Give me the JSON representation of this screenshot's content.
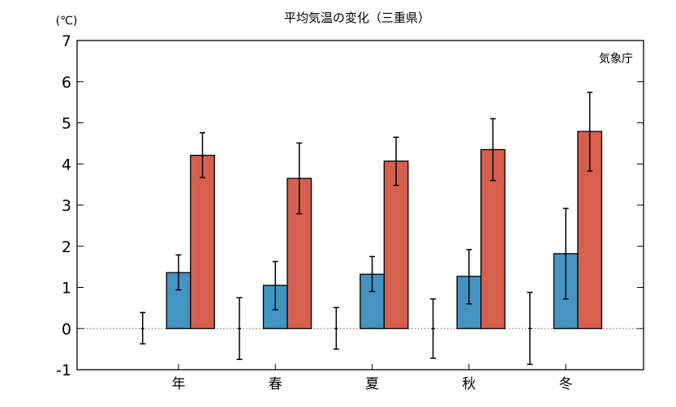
{
  "chart_data": {
    "type": "bar",
    "title": "平均気温の変化（三重県）",
    "ylabel": "(℃)",
    "source": "気象庁",
    "ylim": [
      -1,
      7
    ],
    "yticks": [
      -1,
      0,
      1,
      2,
      3,
      4,
      5,
      6,
      7
    ],
    "categories": [
      "年",
      "春",
      "夏",
      "秋",
      "冬"
    ],
    "series": [
      {
        "name": "series-0",
        "color": "#ffffff",
        "values": [
          0,
          0,
          0,
          0,
          0
        ],
        "err_high": [
          0.39,
          0.75,
          0.51,
          0.72,
          0.88
        ],
        "err_low": [
          -0.37,
          -0.75,
          -0.5,
          -0.72,
          -0.87
        ]
      },
      {
        "name": "series-1",
        "color": "#4393c3",
        "values": [
          1.36,
          1.05,
          1.32,
          1.27,
          1.82
        ],
        "err_high": [
          1.79,
          1.63,
          1.75,
          1.92,
          2.92
        ],
        "err_low": [
          0.94,
          0.46,
          0.9,
          0.6,
          0.72
        ]
      },
      {
        "name": "series-2",
        "color": "#d6604d",
        "values": [
          4.21,
          3.65,
          4.07,
          4.35,
          4.79
        ],
        "err_high": [
          4.76,
          4.51,
          4.65,
          5.1,
          5.74
        ],
        "err_low": [
          3.67,
          2.79,
          3.48,
          3.6,
          3.83
        ]
      }
    ],
    "grid": false,
    "zero_line": "dotted"
  }
}
